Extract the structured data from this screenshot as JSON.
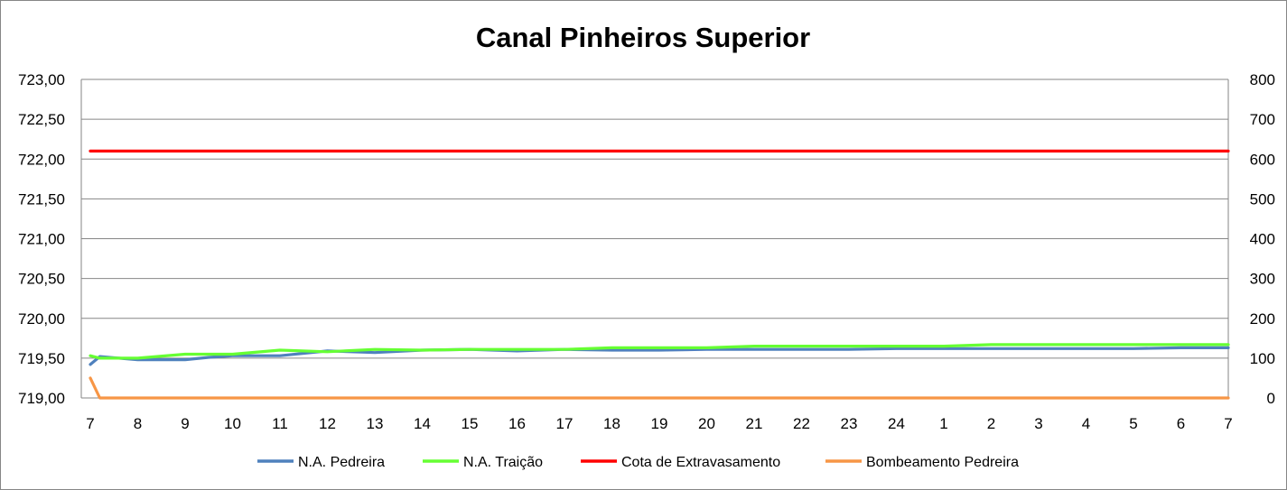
{
  "chart_data": {
    "type": "line",
    "title": "Canal Pinheiros Superior",
    "categories": [
      "7",
      "8",
      "9",
      "10",
      "11",
      "12",
      "13",
      "14",
      "15",
      "16",
      "17",
      "18",
      "19",
      "20",
      "21",
      "22",
      "23",
      "24",
      "1",
      "2",
      "3",
      "4",
      "5",
      "6",
      "7"
    ],
    "left_axis": {
      "ylim": [
        719.0,
        723.0
      ],
      "ticks": [
        "719,00",
        "719,50",
        "720,00",
        "720,50",
        "721,00",
        "721,50",
        "722,00",
        "722,50",
        "723,00"
      ]
    },
    "right_axis": {
      "ylim": [
        0,
        800
      ],
      "ticks": [
        "0",
        "100",
        "200",
        "300",
        "400",
        "500",
        "600",
        "700",
        "800"
      ]
    },
    "grid": true,
    "legend_position": "bottom",
    "series": [
      {
        "name": "N.A. Pedreira",
        "axis": "left",
        "color": "#4f81bd",
        "x": [
          0,
          0.2,
          1,
          2,
          2.5,
          3,
          4,
          5,
          6,
          7,
          8,
          9,
          10,
          11,
          12,
          13,
          14,
          15,
          16,
          17,
          18,
          19,
          20,
          21,
          22,
          23,
          24
        ],
        "values": [
          719.42,
          719.52,
          719.48,
          719.48,
          719.51,
          719.53,
          719.53,
          719.59,
          719.57,
          719.6,
          719.61,
          719.59,
          719.61,
          719.6,
          719.6,
          719.61,
          719.61,
          719.61,
          719.61,
          719.62,
          719.62,
          719.62,
          719.62,
          719.62,
          719.62,
          719.63,
          719.63
        ]
      },
      {
        "name": "N.A. Traição",
        "axis": "left",
        "color": "#66ff33",
        "x": [
          0,
          0.2,
          1,
          2,
          3,
          4,
          5,
          6,
          7,
          8,
          9,
          10,
          11,
          12,
          13,
          14,
          15,
          16,
          17,
          18,
          19,
          20,
          21,
          22,
          23,
          24
        ],
        "values": [
          719.53,
          719.5,
          719.5,
          719.55,
          719.55,
          719.6,
          719.58,
          719.61,
          719.6,
          719.61,
          719.61,
          719.61,
          719.63,
          719.63,
          719.63,
          719.65,
          719.65,
          719.65,
          719.65,
          719.65,
          719.67,
          719.67,
          719.67,
          719.67,
          719.67,
          719.67
        ]
      },
      {
        "name": "Cota de Extravasamento",
        "axis": "left",
        "color": "#ff0000",
        "x": [
          0,
          24
        ],
        "values": [
          722.1,
          722.1
        ]
      },
      {
        "name": "Bombeamento Pedreira",
        "axis": "right",
        "color": "#f79646",
        "x": [
          0,
          0.2,
          24
        ],
        "values": [
          50,
          0,
          0
        ]
      }
    ]
  }
}
